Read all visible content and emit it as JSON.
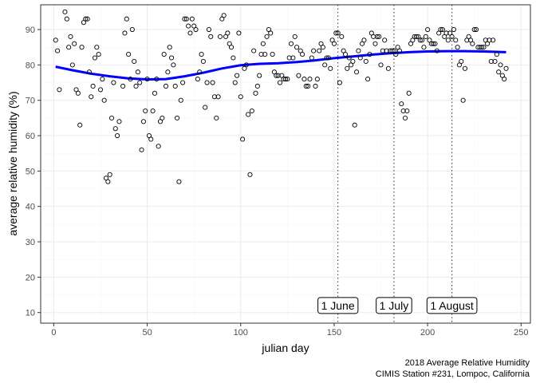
{
  "chart_data": {
    "type": "scatter",
    "xlabel": "julian day",
    "ylabel": "average relative humidity (%)",
    "caption_lines": [
      "2018 Average Relative Humidity",
      "CIMIS Station #231, Lompoc, California"
    ],
    "xlim": [
      -7,
      255
    ],
    "ylim": [
      7,
      97
    ],
    "x_ticks": [
      0,
      50,
      100,
      150,
      200,
      250
    ],
    "y_ticks": [
      10,
      20,
      30,
      40,
      50,
      60,
      70,
      80,
      90
    ],
    "grid": true,
    "colors": {
      "points": "#000000",
      "smooth": "#0000ff",
      "vline": "#4d4d4d",
      "panel_border": "#333333",
      "grid_major": "#ebebeb",
      "grid_minor": "#f5f5f5"
    },
    "vlines": [
      {
        "x": 152,
        "label": "1 June"
      },
      {
        "x": 182,
        "label": "1 July"
      },
      {
        "x": 213,
        "label": "1 August"
      }
    ],
    "annotation_y": 12,
    "points": [
      [
        1,
        87
      ],
      [
        2,
        84
      ],
      [
        3,
        73
      ],
      [
        6,
        95
      ],
      [
        7,
        93
      ],
      [
        8,
        85
      ],
      [
        9,
        88
      ],
      [
        10,
        80
      ],
      [
        11,
        86
      ],
      [
        12,
        73
      ],
      [
        13,
        72
      ],
      [
        14,
        63
      ],
      [
        15,
        85
      ],
      [
        16,
        92
      ],
      [
        17,
        93
      ],
      [
        18,
        93
      ],
      [
        19,
        78
      ],
      [
        20,
        71
      ],
      [
        21,
        74
      ],
      [
        22,
        82
      ],
      [
        23,
        85
      ],
      [
        24,
        83
      ],
      [
        25,
        73
      ],
      [
        26,
        76
      ],
      [
        27,
        70
      ],
      [
        28,
        48
      ],
      [
        29,
        47
      ],
      [
        30,
        49
      ],
      [
        31,
        65
      ],
      [
        32,
        75
      ],
      [
        33,
        62
      ],
      [
        34,
        60
      ],
      [
        35,
        64
      ],
      [
        37,
        74
      ],
      [
        38,
        89
      ],
      [
        39,
        93
      ],
      [
        40,
        83
      ],
      [
        41,
        76
      ],
      [
        42,
        90
      ],
      [
        43,
        81
      ],
      [
        44,
        74
      ],
      [
        45,
        78
      ],
      [
        46,
        75
      ],
      [
        47,
        56
      ],
      [
        48,
        64
      ],
      [
        49,
        67
      ],
      [
        50,
        76
      ],
      [
        51,
        60
      ],
      [
        52,
        59
      ],
      [
        53,
        67
      ],
      [
        54,
        72
      ],
      [
        55,
        76
      ],
      [
        56,
        57
      ],
      [
        57,
        64
      ],
      [
        58,
        65
      ],
      [
        59,
        83
      ],
      [
        60,
        74
      ],
      [
        61,
        78
      ],
      [
        62,
        85
      ],
      [
        63,
        82
      ],
      [
        64,
        80
      ],
      [
        65,
        74
      ],
      [
        66,
        65
      ],
      [
        67,
        47
      ],
      [
        68,
        70
      ],
      [
        69,
        75
      ],
      [
        70,
        93
      ],
      [
        71,
        93
      ],
      [
        72,
        91
      ],
      [
        73,
        89
      ],
      [
        74,
        93
      ],
      [
        75,
        91
      ],
      [
        76,
        90
      ],
      [
        77,
        76
      ],
      [
        78,
        78
      ],
      [
        79,
        83
      ],
      [
        80,
        81
      ],
      [
        81,
        68
      ],
      [
        82,
        75
      ],
      [
        83,
        90
      ],
      [
        84,
        88
      ],
      [
        85,
        75
      ],
      [
        86,
        71
      ],
      [
        87,
        65
      ],
      [
        88,
        71
      ],
      [
        89,
        88
      ],
      [
        90,
        93
      ],
      [
        91,
        94
      ],
      [
        92,
        88
      ],
      [
        93,
        89
      ],
      [
        94,
        86
      ],
      [
        95,
        85
      ],
      [
        96,
        82
      ],
      [
        97,
        75
      ],
      [
        98,
        77
      ],
      [
        99,
        89
      ],
      [
        100,
        71
      ],
      [
        101,
        59
      ],
      [
        102,
        79
      ],
      [
        103,
        80
      ],
      [
        104,
        66
      ],
      [
        105,
        49
      ],
      [
        106,
        67
      ],
      [
        107,
        84
      ],
      [
        108,
        72
      ],
      [
        109,
        74
      ],
      [
        110,
        77
      ],
      [
        111,
        83
      ],
      [
        112,
        86
      ],
      [
        113,
        83
      ],
      [
        114,
        88
      ],
      [
        115,
        90
      ],
      [
        116,
        89
      ],
      [
        117,
        83
      ],
      [
        118,
        78
      ],
      [
        119,
        77
      ],
      [
        120,
        77
      ],
      [
        121,
        75
      ],
      [
        122,
        77
      ],
      [
        123,
        76
      ],
      [
        124,
        76
      ],
      [
        125,
        76
      ],
      [
        126,
        82
      ],
      [
        127,
        86
      ],
      [
        128,
        82
      ],
      [
        129,
        88
      ],
      [
        130,
        85
      ],
      [
        131,
        77
      ],
      [
        132,
        84
      ],
      [
        133,
        83
      ],
      [
        134,
        76
      ],
      [
        135,
        74
      ],
      [
        136,
        74
      ],
      [
        137,
        76
      ],
      [
        138,
        82
      ],
      [
        139,
        84
      ],
      [
        140,
        74
      ],
      [
        141,
        76
      ],
      [
        142,
        84
      ],
      [
        143,
        86
      ],
      [
        144,
        85
      ],
      [
        145,
        80
      ],
      [
        146,
        82
      ],
      [
        147,
        82
      ],
      [
        148,
        79
      ],
      [
        149,
        87
      ],
      [
        150,
        86
      ],
      [
        151,
        89
      ],
      [
        152,
        89
      ],
      [
        153,
        75
      ],
      [
        154,
        88
      ],
      [
        155,
        84
      ],
      [
        156,
        83
      ],
      [
        157,
        79
      ],
      [
        158,
        82
      ],
      [
        159,
        80
      ],
      [
        160,
        81
      ],
      [
        161,
        63
      ],
      [
        162,
        78
      ],
      [
        163,
        84
      ],
      [
        164,
        82
      ],
      [
        165,
        86
      ],
      [
        166,
        87
      ],
      [
        167,
        81
      ],
      [
        168,
        76
      ],
      [
        169,
        83
      ],
      [
        170,
        89
      ],
      [
        171,
        88
      ],
      [
        172,
        86
      ],
      [
        173,
        88
      ],
      [
        174,
        88
      ],
      [
        175,
        80
      ],
      [
        176,
        84
      ],
      [
        177,
        87
      ],
      [
        178,
        84
      ],
      [
        179,
        79
      ],
      [
        180,
        84
      ],
      [
        181,
        84
      ],
      [
        182,
        84
      ],
      [
        183,
        83
      ],
      [
        184,
        85
      ],
      [
        185,
        84
      ],
      [
        186,
        69
      ],
      [
        187,
        67
      ],
      [
        188,
        65
      ],
      [
        189,
        67
      ],
      [
        190,
        72
      ],
      [
        191,
        86
      ],
      [
        192,
        87
      ],
      [
        193,
        88
      ],
      [
        194,
        88
      ],
      [
        195,
        88
      ],
      [
        196,
        87
      ],
      [
        197,
        87
      ],
      [
        198,
        85
      ],
      [
        199,
        88
      ],
      [
        200,
        90
      ],
      [
        201,
        87
      ],
      [
        202,
        86
      ],
      [
        203,
        86
      ],
      [
        204,
        86
      ],
      [
        205,
        84
      ],
      [
        206,
        89
      ],
      [
        207,
        90
      ],
      [
        208,
        90
      ],
      [
        209,
        88
      ],
      [
        210,
        89
      ],
      [
        211,
        87
      ],
      [
        212,
        89
      ],
      [
        213,
        88
      ],
      [
        214,
        90
      ],
      [
        215,
        87
      ],
      [
        216,
        85
      ],
      [
        217,
        80
      ],
      [
        218,
        81
      ],
      [
        219,
        70
      ],
      [
        220,
        79
      ],
      [
        221,
        87
      ],
      [
        222,
        88
      ],
      [
        223,
        87
      ],
      [
        224,
        86
      ],
      [
        225,
        90
      ],
      [
        226,
        90
      ],
      [
        227,
        85
      ],
      [
        228,
        85
      ],
      [
        229,
        85
      ],
      [
        230,
        85
      ],
      [
        231,
        87
      ],
      [
        232,
        86
      ],
      [
        233,
        87
      ],
      [
        234,
        81
      ],
      [
        235,
        87
      ],
      [
        236,
        81
      ],
      [
        237,
        83
      ],
      [
        238,
        78
      ],
      [
        239,
        80
      ],
      [
        240,
        77
      ],
      [
        241,
        76
      ],
      [
        242,
        79
      ]
    ],
    "smooth": [
      [
        1,
        79.5
      ],
      [
        10,
        78.5
      ],
      [
        20,
        77.5
      ],
      [
        30,
        76.8
      ],
      [
        40,
        76.2
      ],
      [
        50,
        75.9
      ],
      [
        60,
        76.0
      ],
      [
        70,
        76.8
      ],
      [
        80,
        77.8
      ],
      [
        90,
        79.0
      ],
      [
        100,
        79.9
      ],
      [
        110,
        80.3
      ],
      [
        120,
        80.5
      ],
      [
        130,
        80.8
      ],
      [
        140,
        81.3
      ],
      [
        150,
        81.9
      ],
      [
        160,
        82.4
      ],
      [
        170,
        82.9
      ],
      [
        180,
        83.3
      ],
      [
        190,
        83.6
      ],
      [
        200,
        83.8
      ],
      [
        210,
        83.9
      ],
      [
        220,
        83.9
      ],
      [
        230,
        83.8
      ],
      [
        242,
        83.6
      ]
    ]
  }
}
